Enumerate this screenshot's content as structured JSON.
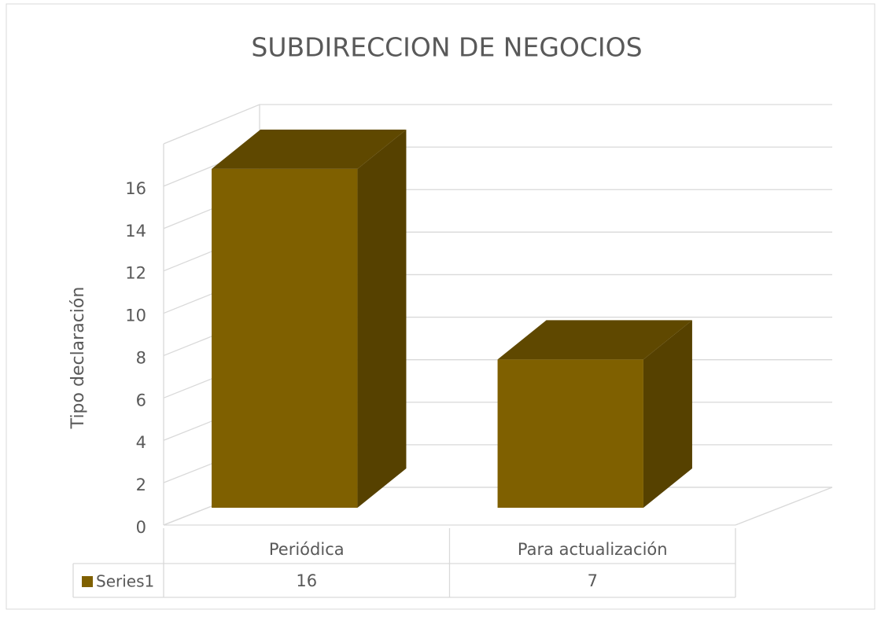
{
  "chart_data": {
    "type": "bar3d",
    "title": "SUBDIRECCION DE NEGOCIOS",
    "y_axis_label": "Tipo declaración",
    "categories": [
      "Periódica",
      "Para actualización"
    ],
    "series": [
      {
        "name": "Series1",
        "color": "#7f6000",
        "values": [
          16,
          7
        ]
      }
    ],
    "ylim": [
      0,
      18
    ],
    "yticks": [
      0,
      2,
      4,
      6,
      8,
      10,
      12,
      14,
      16
    ],
    "grid": true,
    "data_table": true
  }
}
